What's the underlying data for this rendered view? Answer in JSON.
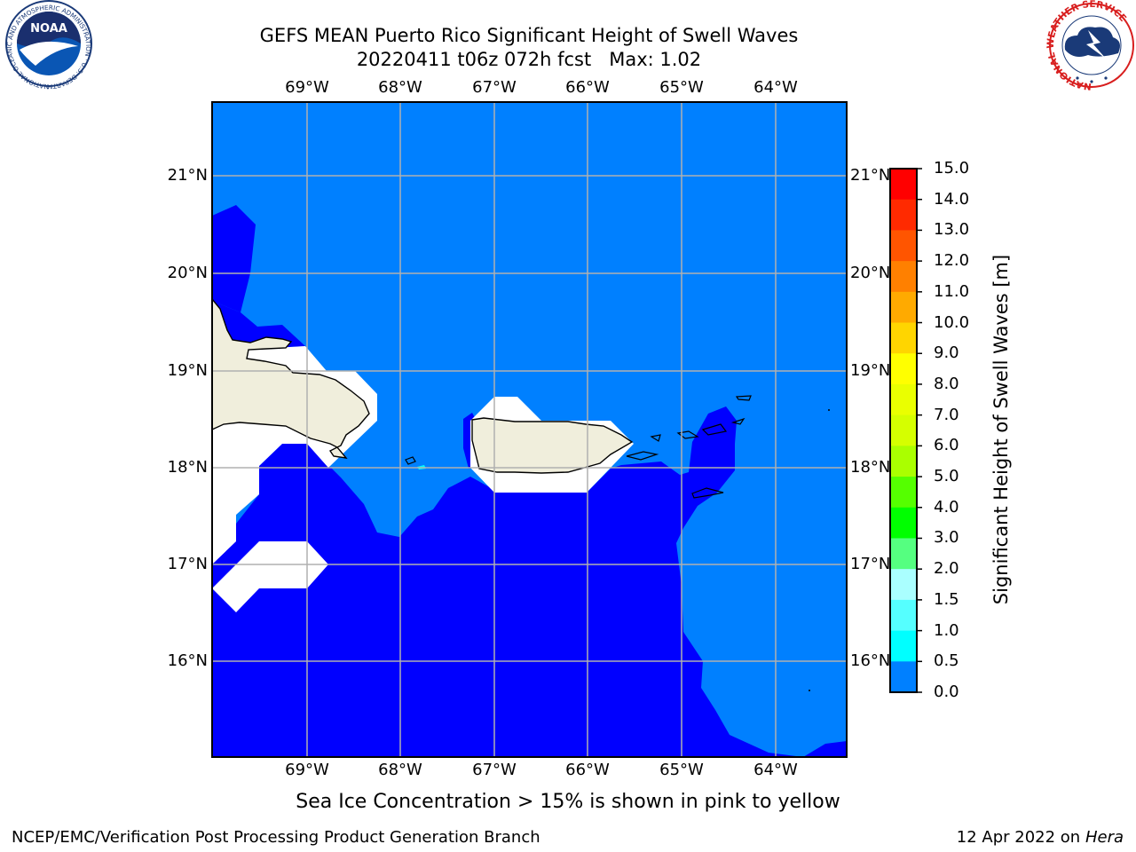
{
  "title": {
    "line1": "GEFS MEAN Puerto Rico Significant Height of Swell Waves",
    "line2": "20220411 t06z 072h fcst   Max: 1.02"
  },
  "map": {
    "lon_labels": [
      "69°W",
      "68°W",
      "67°W",
      "66°W",
      "65°W",
      "64°W"
    ],
    "lat_labels": [
      "21°N",
      "20°N",
      "19°N",
      "18°N",
      "17°N",
      "16°N"
    ],
    "extent": {
      "lon_min": -70.0,
      "lon_max": -63.25,
      "lat_min": 15.0,
      "lat_max": 21.75
    },
    "colors": {
      "swell_0_to_0_5": "#0000ff",
      "swell_0_5_to_1_0": "#0080ff",
      "swell_1_0_to_1_5": "#00ffff",
      "land": "#f0eedc",
      "masked": "#ffffff",
      "grid": "#b0b0b0"
    }
  },
  "colorbar": {
    "label": "Significant Height of Swell Waves [m]",
    "ticks": [
      "15.0",
      "14.0",
      "13.0",
      "12.0",
      "11.0",
      "10.0",
      "9.0",
      "8.0",
      "7.0",
      "6.0",
      "5.0",
      "4.0",
      "3.0",
      "2.0",
      "1.5",
      "1.0",
      "0.5",
      "0.0"
    ],
    "colors_top_to_bottom": [
      "#ff0000",
      "#ff2a00",
      "#ff5500",
      "#ff8000",
      "#ffaa00",
      "#ffd500",
      "#ffff00",
      "#eaff00",
      "#d5ff00",
      "#aaff00",
      "#55ff00",
      "#00ff00",
      "#55ff80",
      "#aaffff",
      "#55ffff",
      "#00ffff",
      "#0080ff",
      "#0000ff"
    ]
  },
  "note": "Sea Ice Concentration > 15% is shown in pink to yellow",
  "footer": {
    "left": "NCEP/EMC/Verification Post Processing Product Generation Branch",
    "right_date": "12 Apr 2022 on ",
    "right_machine": "Hera"
  },
  "logos": {
    "noaa_text": "NOAA",
    "noaa_ring": "NATIONAL OCEANIC AND ATMOSPHERIC ADMINISTRATION · U.S. DEPARTMENT OF COMMERCE",
    "nws_ring": "NATIONAL WEATHER SERVICE"
  }
}
